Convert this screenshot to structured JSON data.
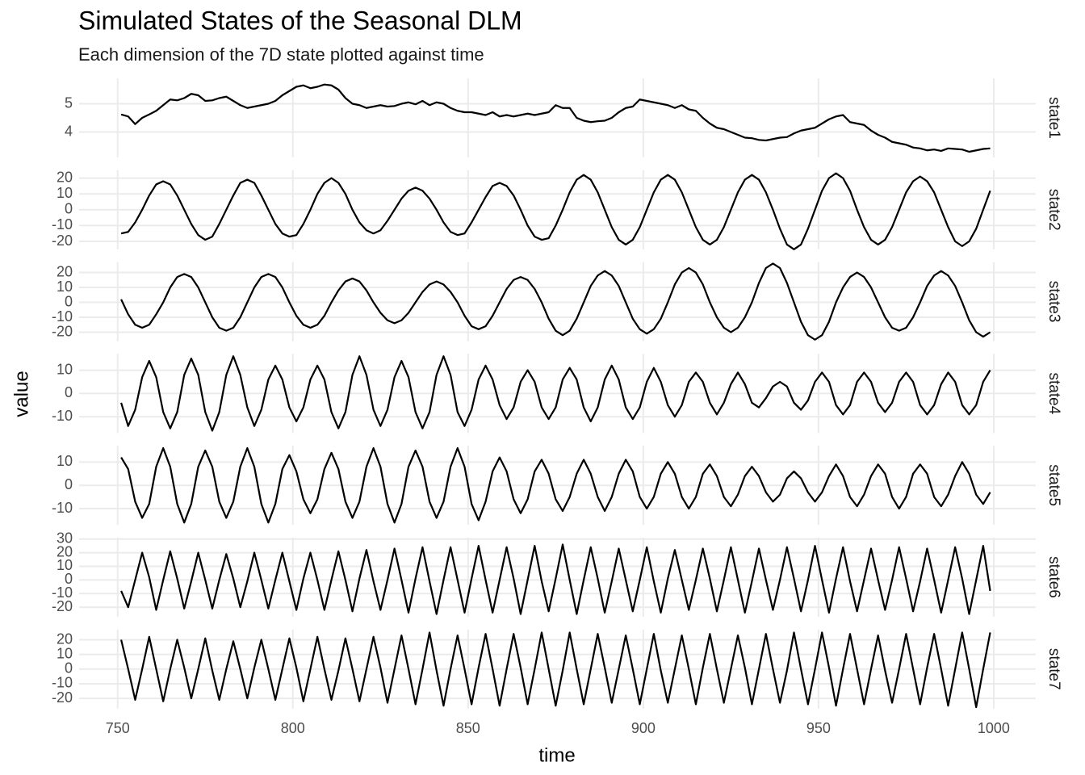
{
  "chart_data": {
    "type": "line",
    "title": "Simulated States of the Seasonal DLM",
    "subtitle": "Each dimension of the 7D state plotted against time",
    "x_label": "time",
    "y_label": "value",
    "grid": true,
    "color": "#000000",
    "xlim": [
      739,
      1012
    ],
    "xticks": [
      750,
      800,
      850,
      900,
      950,
      1000
    ],
    "x": [
      751,
      753,
      755,
      757,
      759,
      761,
      763,
      765,
      767,
      769,
      771,
      773,
      775,
      777,
      779,
      781,
      783,
      785,
      787,
      789,
      791,
      793,
      795,
      797,
      799,
      801,
      803,
      805,
      807,
      809,
      811,
      813,
      815,
      817,
      819,
      821,
      823,
      825,
      827,
      829,
      831,
      833,
      835,
      837,
      839,
      841,
      843,
      845,
      847,
      849,
      851,
      853,
      855,
      857,
      859,
      861,
      863,
      865,
      867,
      869,
      871,
      873,
      875,
      877,
      879,
      881,
      883,
      885,
      887,
      889,
      891,
      893,
      895,
      897,
      899,
      901,
      903,
      905,
      907,
      909,
      911,
      913,
      915,
      917,
      919,
      921,
      923,
      925,
      927,
      929,
      931,
      933,
      935,
      937,
      939,
      941,
      943,
      945,
      947,
      949,
      951,
      953,
      955,
      957,
      959,
      961,
      963,
      965,
      967,
      969,
      971,
      973,
      975,
      977,
      979,
      981,
      983,
      985,
      987,
      989,
      991,
      993,
      995,
      997,
      999
    ],
    "panels": [
      {
        "name": "state1",
        "ylim": [
          3.1,
          5.9
        ],
        "yticks": [
          4,
          5
        ],
        "values": [
          4.62,
          4.55,
          4.28,
          4.5,
          4.62,
          4.75,
          4.95,
          5.15,
          5.12,
          5.2,
          5.35,
          5.3,
          5.1,
          5.12,
          5.2,
          5.25,
          5.1,
          4.95,
          4.85,
          4.9,
          4.95,
          5.0,
          5.1,
          5.3,
          5.45,
          5.6,
          5.65,
          5.55,
          5.6,
          5.68,
          5.65,
          5.5,
          5.2,
          5.0,
          4.95,
          4.85,
          4.9,
          4.95,
          4.9,
          4.92,
          5.0,
          5.05,
          4.98,
          5.1,
          4.95,
          5.05,
          5.0,
          4.85,
          4.75,
          4.7,
          4.7,
          4.65,
          4.6,
          4.7,
          4.55,
          4.6,
          4.55,
          4.6,
          4.65,
          4.6,
          4.65,
          4.7,
          4.95,
          4.85,
          4.85,
          4.5,
          4.4,
          4.35,
          4.38,
          4.4,
          4.5,
          4.7,
          4.85,
          4.9,
          5.15,
          5.1,
          5.05,
          5.0,
          4.95,
          4.85,
          4.95,
          4.8,
          4.75,
          4.5,
          4.3,
          4.15,
          4.1,
          4.0,
          3.9,
          3.8,
          3.78,
          3.72,
          3.7,
          3.75,
          3.8,
          3.82,
          3.95,
          4.05,
          4.1,
          4.15,
          4.3,
          4.45,
          4.55,
          4.6,
          4.35,
          4.3,
          4.25,
          4.05,
          3.9,
          3.8,
          3.65,
          3.6,
          3.55,
          3.45,
          3.42,
          3.35,
          3.38,
          3.33,
          3.42,
          3.4,
          3.38,
          3.3,
          3.35,
          3.4,
          3.42
        ]
      },
      {
        "name": "state2",
        "ylim": [
          -25,
          25
        ],
        "yticks": [
          -20,
          -10,
          0,
          10,
          20
        ],
        "values": [
          -15,
          -14,
          -8,
          0,
          9,
          16,
          18,
          16,
          9,
          0,
          -9,
          -16,
          -19,
          -17,
          -9,
          0,
          9,
          17,
          19,
          17,
          9,
          0,
          -9,
          -15,
          -17,
          -16,
          -9,
          0,
          10,
          17,
          20,
          17,
          10,
          0,
          -8,
          -13,
          -15,
          -13,
          -7,
          0,
          7,
          12,
          14,
          12,
          7,
          0,
          -8,
          -14,
          -16,
          -15,
          -8,
          0,
          8,
          15,
          17,
          15,
          9,
          0,
          -10,
          -17,
          -19,
          -18,
          -10,
          0,
          11,
          19,
          22,
          19,
          11,
          0,
          -11,
          -19,
          -22,
          -19,
          -11,
          0,
          11,
          19,
          22,
          19,
          11,
          0,
          -11,
          -19,
          -22,
          -19,
          -11,
          0,
          11,
          19,
          22,
          19,
          11,
          0,
          -12,
          -22,
          -25,
          -22,
          -12,
          0,
          12,
          20,
          23,
          20,
          12,
          0,
          -11,
          -19,
          -22,
          -19,
          -11,
          0,
          11,
          18,
          21,
          18,
          11,
          0,
          -11,
          -20,
          -23,
          -20,
          -12,
          0,
          12
        ]
      },
      {
        "name": "state3",
        "ylim": [
          -26,
          27
        ],
        "yticks": [
          -20,
          -10,
          0,
          10,
          20
        ],
        "values": [
          2,
          -8,
          -15,
          -17,
          -15,
          -8,
          0,
          10,
          17,
          19,
          17,
          10,
          0,
          -10,
          -17,
          -19,
          -17,
          -10,
          0,
          10,
          17,
          19,
          17,
          10,
          0,
          -9,
          -15,
          -17,
          -15,
          -9,
          0,
          8,
          14,
          16,
          14,
          8,
          0,
          -7,
          -12,
          -14,
          -12,
          -7,
          0,
          7,
          12,
          14,
          12,
          7,
          0,
          -9,
          -16,
          -18,
          -16,
          -9,
          0,
          9,
          15,
          17,
          15,
          9,
          0,
          -11,
          -19,
          -22,
          -19,
          -11,
          0,
          11,
          18,
          21,
          18,
          11,
          0,
          -11,
          -18,
          -21,
          -18,
          -11,
          0,
          12,
          20,
          23,
          20,
          12,
          0,
          -10,
          -17,
          -20,
          -17,
          -10,
          0,
          13,
          23,
          26,
          23,
          13,
          0,
          -13,
          -22,
          -25,
          -22,
          -13,
          0,
          10,
          17,
          20,
          17,
          10,
          0,
          -10,
          -17,
          -19,
          -17,
          -10,
          0,
          11,
          18,
          21,
          18,
          11,
          0,
          -12,
          -20,
          -23,
          -20
        ]
      },
      {
        "name": "state4",
        "ylim": [
          -17,
          17
        ],
        "yticks": [
          -10,
          0,
          10
        ],
        "values": [
          -4,
          -14,
          -7,
          7,
          14,
          7,
          -8,
          -15,
          -8,
          8,
          15,
          8,
          -8,
          -16,
          -8,
          8,
          16,
          8,
          -6,
          -14,
          -7,
          6,
          12,
          6,
          -6,
          -12,
          -6,
          6,
          12,
          6,
          -8,
          -15,
          -8,
          8,
          16,
          8,
          -7,
          -14,
          -7,
          7,
          14,
          7,
          -8,
          -15,
          -8,
          8,
          16,
          8,
          -8,
          -14,
          -7,
          6,
          12,
          6,
          -5,
          -11,
          -6,
          5,
          10,
          5,
          -6,
          -11,
          -6,
          6,
          11,
          6,
          -6,
          -12,
          -6,
          6,
          12,
          6,
          -6,
          -11,
          -6,
          5,
          11,
          5,
          -5,
          -10,
          -5,
          5,
          9,
          5,
          -4,
          -9,
          -4,
          4,
          9,
          4,
          -4,
          -6,
          -2,
          3,
          5,
          3,
          -4,
          -7,
          -3,
          5,
          9,
          5,
          -5,
          -9,
          -5,
          5,
          9,
          5,
          -4,
          -8,
          -4,
          5,
          9,
          5,
          -5,
          -9,
          -5,
          4,
          9,
          5,
          -5,
          -9,
          -5,
          5,
          10
        ]
      },
      {
        "name": "state5",
        "ylim": [
          -17,
          17
        ],
        "yticks": [
          -10,
          0,
          10
        ],
        "values": [
          12,
          7,
          -7,
          -14,
          -8,
          8,
          16,
          8,
          -8,
          -16,
          -8,
          8,
          15,
          8,
          -7,
          -14,
          -7,
          8,
          16,
          8,
          -8,
          -16,
          -8,
          7,
          13,
          6,
          -6,
          -12,
          -6,
          7,
          14,
          7,
          -7,
          -14,
          -7,
          8,
          16,
          8,
          -8,
          -16,
          -8,
          8,
          15,
          8,
          -7,
          -14,
          -7,
          8,
          16,
          8,
          -8,
          -15,
          -7,
          6,
          12,
          6,
          -6,
          -12,
          -6,
          6,
          11,
          5,
          -6,
          -11,
          -5,
          5,
          11,
          5,
          -5,
          -11,
          -5,
          5,
          11,
          6,
          -5,
          -10,
          -5,
          5,
          10,
          5,
          -5,
          -10,
          -5,
          5,
          9,
          4,
          -5,
          -9,
          -4,
          4,
          8,
          4,
          -3,
          -7,
          -4,
          3,
          6,
          3,
          -3,
          -7,
          -3,
          4,
          9,
          4,
          -5,
          -9,
          -4,
          4,
          9,
          5,
          -5,
          -10,
          -5,
          5,
          9,
          5,
          -5,
          -9,
          -4,
          4,
          10,
          5,
          -4,
          -8,
          -3
        ]
      },
      {
        "name": "state6",
        "ylim": [
          -27,
          31
        ],
        "yticks": [
          -20,
          -10,
          0,
          10,
          20,
          30
        ],
        "values": [
          -8,
          -20,
          0,
          20,
          2,
          -22,
          0,
          21,
          1,
          -21,
          -1,
          20,
          0,
          -21,
          0,
          19,
          1,
          -20,
          -1,
          20,
          0,
          -21,
          0,
          20,
          -1,
          -22,
          1,
          20,
          0,
          -22,
          0,
          21,
          0,
          -23,
          1,
          22,
          -1,
          -22,
          0,
          23,
          0,
          -24,
          1,
          24,
          -1,
          -25,
          0,
          24,
          0,
          -24,
          1,
          25,
          0,
          -24,
          0,
          24,
          1,
          -25,
          0,
          25,
          -1,
          -23,
          1,
          26,
          0,
          -25,
          0,
          24,
          1,
          -24,
          -1,
          23,
          0,
          -23,
          0,
          24,
          -1,
          -24,
          1,
          22,
          0,
          -22,
          0,
          23,
          1,
          -23,
          0,
          24,
          0,
          -24,
          -1,
          23,
          0,
          -22,
          0,
          24,
          1,
          -23,
          0,
          25,
          0,
          -24,
          1,
          24,
          -1,
          -23,
          0,
          23,
          0,
          -22,
          0,
          24,
          1,
          -23,
          -1,
          23,
          0,
          -24,
          0,
          24,
          1,
          -25,
          0,
          25,
          -8
        ]
      },
      {
        "name": "state7",
        "ylim": [
          -27,
          27
        ],
        "yticks": [
          -20,
          -10,
          0,
          10,
          20
        ],
        "values": [
          20,
          0,
          -21,
          0,
          22,
          0,
          -22,
          0,
          20,
          1,
          -20,
          0,
          21,
          -1,
          -21,
          0,
          19,
          0,
          -20,
          1,
          20,
          0,
          -21,
          0,
          21,
          1,
          -22,
          0,
          22,
          0,
          -21,
          -1,
          21,
          0,
          -22,
          0,
          22,
          1,
          -23,
          0,
          23,
          0,
          -24,
          0,
          25,
          -1,
          -25,
          0,
          23,
          0,
          -24,
          1,
          24,
          0,
          -25,
          0,
          24,
          1,
          -24,
          0,
          25,
          0,
          -25,
          -1,
          25,
          0,
          -24,
          0,
          24,
          1,
          -23,
          0,
          23,
          0,
          -24,
          0,
          24,
          -1,
          -23,
          0,
          23,
          0,
          -24,
          1,
          24,
          0,
          -23,
          0,
          23,
          1,
          -24,
          0,
          24,
          0,
          -23,
          -1,
          25,
          0,
          -24,
          0,
          25,
          1,
          -25,
          0,
          24,
          0,
          -24,
          0,
          23,
          -1,
          -23,
          0,
          24,
          0,
          -24,
          1,
          24,
          0,
          -25,
          0,
          25,
          0,
          -26,
          0,
          25
        ]
      }
    ]
  }
}
